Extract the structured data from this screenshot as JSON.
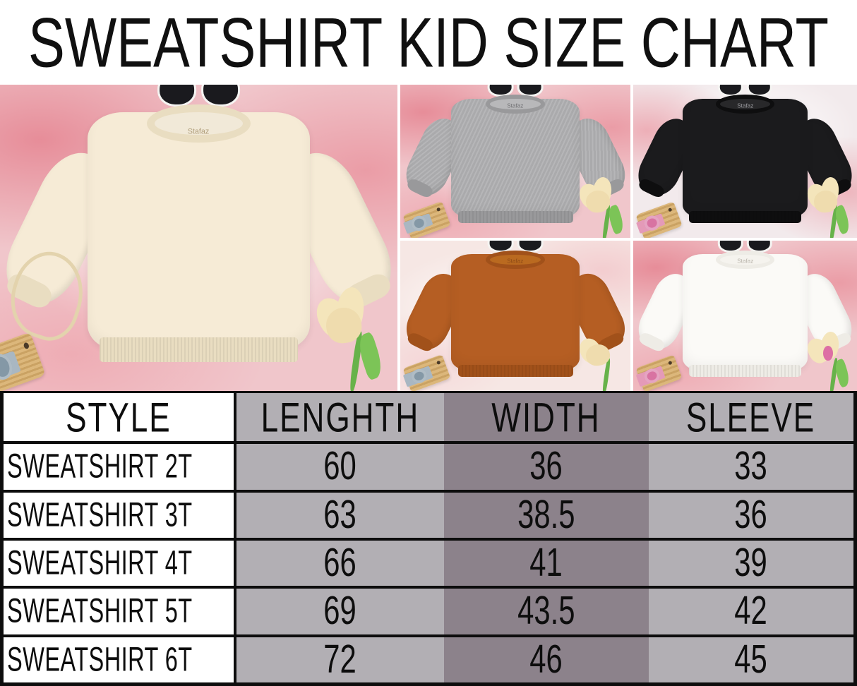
{
  "title": "SWEATSHIRT KID SIZE CHART",
  "brand_label": "Stafaz",
  "photo_collage": {
    "panels": [
      {
        "id": "cream",
        "label": "cream kid sweatshirt",
        "color": "#f6ebd6"
      },
      {
        "id": "heather-gray",
        "label": "heather gray kid sweatshirt",
        "color": "#aaaaac"
      },
      {
        "id": "black",
        "label": "black kid sweatshirt",
        "color": "#1b1b1d"
      },
      {
        "id": "rust-orange",
        "label": "rust orange kid sweatshirt",
        "color": "#b55e23"
      },
      {
        "id": "white",
        "label": "white kid sweatshirt",
        "color": "#fbfaf7"
      }
    ],
    "props": [
      "black sunglasses with daisy",
      "wooden toy camera",
      "cream tulip flower",
      "pink tulle backdrop"
    ]
  },
  "chart_data": {
    "type": "table",
    "title": "SWEATSHIRT KID SIZE CHART",
    "columns": [
      "STYLE",
      "LENGHTH",
      "WIDTH",
      "SLEEVE"
    ],
    "rows": [
      [
        "SWEATSHIRT 2T",
        "60",
        "36",
        "33"
      ],
      [
        "SWEATSHIRT 3T",
        "63",
        "38.5",
        "36"
      ],
      [
        "SWEATSHIRT 4T",
        "66",
        "41",
        "39"
      ],
      [
        "SWEATSHIRT 5T",
        "69",
        "43.5",
        "42"
      ],
      [
        "SWEATSHIRT 6T",
        "72",
        "46",
        "45"
      ]
    ]
  },
  "colors": {
    "table_light_gray": "#b2afb4",
    "table_dark_gray": "#8c828b",
    "border_black": "#0d0d0d",
    "tulle_pink": "#f0c6cb",
    "title_text": "#101010"
  }
}
